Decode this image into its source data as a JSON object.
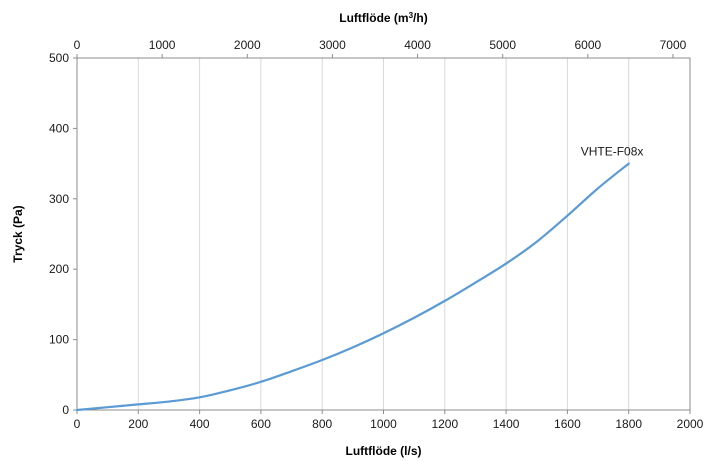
{
  "chart_data": {
    "type": "line",
    "xlabel": "Luftflöde (l/s)",
    "x2label_prefix": "Luftflöde (m",
    "x2label_sup": "3",
    "x2label_suffix": "/h)",
    "ylabel": "Tryck (Pa)",
    "xlim": [
      0,
      2000
    ],
    "x2lim": [
      0,
      7200
    ],
    "ylim": [
      0,
      500
    ],
    "xticks": [
      0,
      200,
      400,
      600,
      800,
      1000,
      1200,
      1400,
      1600,
      1800,
      2000
    ],
    "x2ticks": [
      0,
      1000,
      2000,
      3000,
      4000,
      5000,
      6000,
      7000
    ],
    "yticks": [
      0,
      100,
      200,
      300,
      400,
      500
    ],
    "grid": "vertical",
    "line_color": "#5b9bd5",
    "series": [
      {
        "name": "VHTE-F08x",
        "x": [
          0,
          100,
          200,
          300,
          400,
          500,
          600,
          700,
          800,
          900,
          1000,
          1100,
          1200,
          1300,
          1400,
          1500,
          1600,
          1700,
          1800
        ],
        "y": [
          0,
          4,
          8,
          12,
          18,
          28,
          40,
          55,
          71,
          89,
          109,
          131,
          155,
          181,
          208,
          239,
          276,
          315,
          350
        ]
      }
    ]
  }
}
